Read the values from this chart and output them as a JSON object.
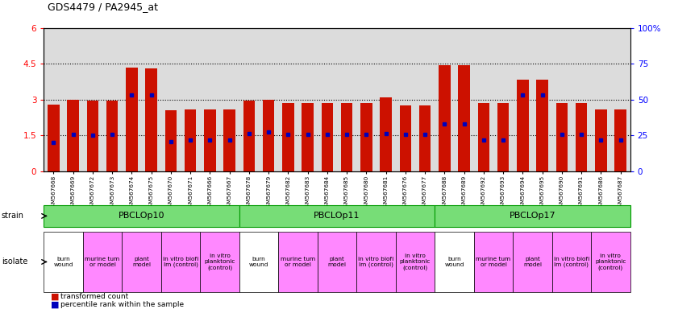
{
  "title": "GDS4479 / PA2945_at",
  "gsm_ids": [
    "GSM567668",
    "GSM567669",
    "GSM567672",
    "GSM567673",
    "GSM567674",
    "GSM567675",
    "GSM567670",
    "GSM567671",
    "GSM567666",
    "GSM567667",
    "GSM567678",
    "GSM567679",
    "GSM567682",
    "GSM567683",
    "GSM567684",
    "GSM567685",
    "GSM567680",
    "GSM567681",
    "GSM567676",
    "GSM567677",
    "GSM567688",
    "GSM567689",
    "GSM567692",
    "GSM567693",
    "GSM567694",
    "GSM567695",
    "GSM567690",
    "GSM567691",
    "GSM567686",
    "GSM567687"
  ],
  "red_values": [
    2.8,
    3.0,
    2.95,
    2.95,
    4.35,
    4.3,
    2.55,
    2.6,
    2.6,
    2.6,
    2.95,
    3.0,
    2.85,
    2.85,
    2.85,
    2.85,
    2.85,
    3.1,
    2.75,
    2.75,
    4.45,
    4.45,
    2.85,
    2.85,
    3.85,
    3.85,
    2.85,
    2.85,
    2.6,
    2.6
  ],
  "blue_values": [
    1.2,
    1.55,
    1.5,
    1.55,
    3.2,
    3.2,
    1.25,
    1.3,
    1.3,
    1.3,
    1.6,
    1.65,
    1.55,
    1.55,
    1.55,
    1.55,
    1.55,
    1.6,
    1.55,
    1.55,
    2.0,
    2.0,
    1.3,
    1.3,
    3.2,
    3.2,
    1.55,
    1.55,
    1.3,
    1.3
  ],
  "ylim_left": [
    0,
    6
  ],
  "ylim_right": [
    0,
    100
  ],
  "yticks_left": [
    0,
    1.5,
    3.0,
    4.5,
    6.0
  ],
  "yticks_right": [
    0,
    25,
    50,
    75,
    100
  ],
  "ytick_labels_left": [
    "0",
    "1.5",
    "3",
    "4.5",
    "6"
  ],
  "ytick_labels_right": [
    "0",
    "25",
    "50",
    "75",
    "100%"
  ],
  "hlines": [
    1.5,
    3.0,
    4.5
  ],
  "bar_color": "#CC1100",
  "blue_color": "#0000BB",
  "bg_color": "#DCDCDC",
  "white": "#FFFFFF",
  "strain_color": "#77DD77",
  "strain_border": "#009900",
  "isolate_color_white": "#FFFFFF",
  "isolate_color_pink": "#FF88FF",
  "strain_groups": [
    {
      "label": "PBCLOp10",
      "start": 0,
      "end": 9
    },
    {
      "label": "PBCLOp11",
      "start": 10,
      "end": 19
    },
    {
      "label": "PBCLOp17",
      "start": 20,
      "end": 29
    }
  ],
  "isolate_groups": [
    {
      "label": "burn\nwound",
      "start": 0,
      "end": 1,
      "pink": false
    },
    {
      "label": "murine tum\nor model",
      "start": 2,
      "end": 3,
      "pink": true
    },
    {
      "label": "plant\nmodel",
      "start": 4,
      "end": 5,
      "pink": true
    },
    {
      "label": "in vitro biofi\nlm (control)",
      "start": 6,
      "end": 7,
      "pink": true
    },
    {
      "label": "in vitro\nplanktonic\n(control)",
      "start": 8,
      "end": 9,
      "pink": true
    },
    {
      "label": "burn\nwound",
      "start": 10,
      "end": 11,
      "pink": false
    },
    {
      "label": "murine tum\nor model",
      "start": 12,
      "end": 13,
      "pink": true
    },
    {
      "label": "plant\nmodel",
      "start": 14,
      "end": 15,
      "pink": true
    },
    {
      "label": "in vitro biofi\nlm (control)",
      "start": 16,
      "end": 17,
      "pink": true
    },
    {
      "label": "in vitro\nplanktonic\n(control)",
      "start": 18,
      "end": 19,
      "pink": true
    },
    {
      "label": "burn\nwound",
      "start": 20,
      "end": 21,
      "pink": false
    },
    {
      "label": "murine tum\nor model",
      "start": 22,
      "end": 23,
      "pink": true
    },
    {
      "label": "plant\nmodel",
      "start": 24,
      "end": 25,
      "pink": true
    },
    {
      "label": "in vitro biofi\nlm (control)",
      "start": 26,
      "end": 27,
      "pink": true
    },
    {
      "label": "in vitro\nplanktonic\n(control)",
      "start": 28,
      "end": 29,
      "pink": true
    }
  ]
}
